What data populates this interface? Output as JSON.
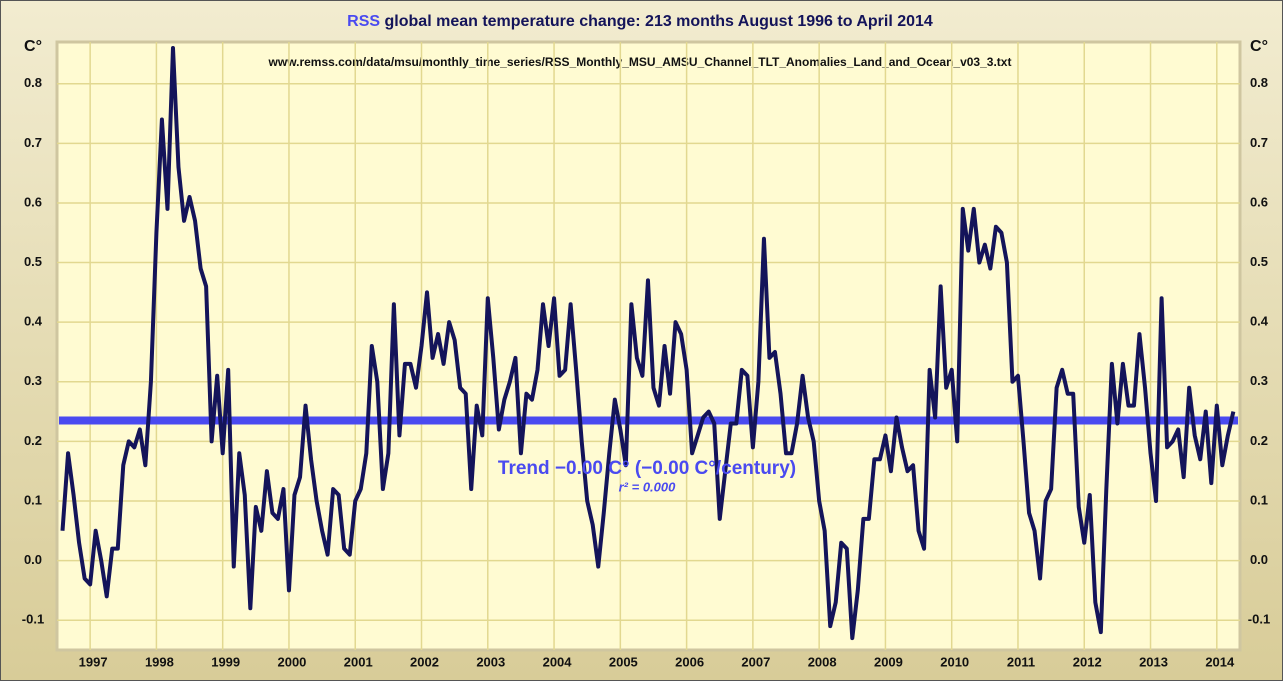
{
  "chart_data": {
    "type": "line",
    "title_prefix": "RSS",
    "title": "global mean temperature change: 213 months August 1996 to April 2014",
    "source": "www.remss.com/data/msu/monthly_time_series/RSS_Monthly_MSU_AMSU_Channel_TLT_Anomalies_Land_and_Ocean_v03_3.txt",
    "y_label": "C°",
    "trend_label": "Trend −0.00 C° (−0.00 C°/century)",
    "r2_label": "r² = 0.000",
    "trend_value": 0.235,
    "trend_color": "#4a4af0",
    "x": [
      1996.583,
      1996.667,
      1996.75,
      1996.833,
      1996.917,
      1997,
      1997.083,
      1997.167,
      1997.25,
      1997.333,
      1997.417,
      1997.5,
      1997.583,
      1997.667,
      1997.75,
      1997.833,
      1997.917,
      1998,
      1998.083,
      1998.167,
      1998.25,
      1998.333,
      1998.417,
      1998.5,
      1998.583,
      1998.667,
      1998.75,
      1998.833,
      1998.917,
      1999,
      1999.083,
      1999.167,
      1999.25,
      1999.333,
      1999.417,
      1999.5,
      1999.583,
      1999.667,
      1999.75,
      1999.833,
      1999.917,
      2000,
      2000.083,
      2000.167,
      2000.25,
      2000.333,
      2000.417,
      2000.5,
      2000.583,
      2000.667,
      2000.75,
      2000.833,
      2000.917,
      2001,
      2001.083,
      2001.167,
      2001.25,
      2001.333,
      2001.417,
      2001.5,
      2001.583,
      2001.667,
      2001.75,
      2001.833,
      2001.917,
      2002,
      2002.083,
      2002.167,
      2002.25,
      2002.333,
      2002.417,
      2002.5,
      2002.583,
      2002.667,
      2002.75,
      2002.833,
      2002.917,
      2003,
      2003.083,
      2003.167,
      2003.25,
      2003.333,
      2003.417,
      2003.5,
      2003.583,
      2003.667,
      2003.75,
      2003.833,
      2003.917,
      2004,
      2004.083,
      2004.167,
      2004.25,
      2004.333,
      2004.417,
      2004.5,
      2004.583,
      2004.667,
      2004.75,
      2004.833,
      2004.917,
      2005,
      2005.083,
      2005.167,
      2005.25,
      2005.333,
      2005.417,
      2005.5,
      2005.583,
      2005.667,
      2005.75,
      2005.833,
      2005.917,
      2006,
      2006.083,
      2006.167,
      2006.25,
      2006.333,
      2006.417,
      2006.5,
      2006.583,
      2006.667,
      2006.75,
      2006.833,
      2006.917,
      2007,
      2007.083,
      2007.167,
      2007.25,
      2007.333,
      2007.417,
      2007.5,
      2007.583,
      2007.667,
      2007.75,
      2007.833,
      2007.917,
      2008,
      2008.083,
      2008.167,
      2008.25,
      2008.333,
      2008.417,
      2008.5,
      2008.583,
      2008.667,
      2008.75,
      2008.833,
      2008.917,
      2009,
      2009.083,
      2009.167,
      2009.25,
      2009.333,
      2009.417,
      2009.5,
      2009.583,
      2009.667,
      2009.75,
      2009.833,
      2009.917,
      2010,
      2010.083,
      2010.167,
      2010.25,
      2010.333,
      2010.417,
      2010.5,
      2010.583,
      2010.667,
      2010.75,
      2010.833,
      2010.917,
      2011,
      2011.083,
      2011.167,
      2011.25,
      2011.333,
      2011.417,
      2011.5,
      2011.583,
      2011.667,
      2011.75,
      2011.833,
      2011.917,
      2012,
      2012.083,
      2012.167,
      2012.25,
      2012.333,
      2012.417,
      2012.5,
      2012.583,
      2012.667,
      2012.75,
      2012.833,
      2012.917,
      2013,
      2013.083,
      2013.167,
      2013.25,
      2013.333,
      2013.417,
      2013.5,
      2013.583,
      2013.667,
      2013.75,
      2013.833,
      2013.917,
      2014,
      2014.083,
      2014.167,
      2014.25
    ],
    "series": [
      {
        "color": "#14145a",
        "values": [
          0.05,
          0.18,
          0.11,
          0.03,
          -0.03,
          -0.04,
          0.05,
          0.0,
          -0.06,
          0.02,
          0.02,
          0.16,
          0.2,
          0.19,
          0.22,
          0.16,
          0.3,
          0.55,
          0.74,
          0.59,
          0.86,
          0.66,
          0.57,
          0.61,
          0.57,
          0.49,
          0.46,
          0.2,
          0.31,
          0.18,
          0.32,
          -0.01,
          0.18,
          0.11,
          -0.08,
          0.09,
          0.05,
          0.15,
          0.08,
          0.07,
          0.12,
          -0.05,
          0.11,
          0.14,
          0.26,
          0.17,
          0.1,
          0.05,
          0.01,
          0.12,
          0.11,
          0.02,
          0.01,
          0.1,
          0.12,
          0.18,
          0.36,
          0.3,
          0.12,
          0.18,
          0.43,
          0.21,
          0.33,
          0.33,
          0.29,
          0.36,
          0.45,
          0.34,
          0.38,
          0.33,
          0.4,
          0.37,
          0.29,
          0.28,
          0.12,
          0.26,
          0.21,
          0.44,
          0.34,
          0.22,
          0.27,
          0.3,
          0.34,
          0.18,
          0.28,
          0.27,
          0.32,
          0.43,
          0.36,
          0.44,
          0.31,
          0.32,
          0.43,
          0.32,
          0.2,
          0.1,
          0.06,
          -0.01,
          0.08,
          0.18,
          0.27,
          0.22,
          0.16,
          0.43,
          0.34,
          0.31,
          0.47,
          0.29,
          0.26,
          0.36,
          0.28,
          0.4,
          0.38,
          0.32,
          0.18,
          0.21,
          0.24,
          0.25,
          0.23,
          0.07,
          0.15,
          0.23,
          0.23,
          0.32,
          0.31,
          0.19,
          0.3,
          0.54,
          0.34,
          0.35,
          0.28,
          0.18,
          0.18,
          0.23,
          0.31,
          0.24,
          0.2,
          0.1,
          0.05,
          -0.11,
          -0.07,
          0.03,
          0.02,
          -0.13,
          -0.05,
          0.07,
          0.07,
          0.17,
          0.17,
          0.21,
          0.15,
          0.24,
          0.19,
          0.15,
          0.16,
          0.05,
          0.02,
          0.32,
          0.24,
          0.46,
          0.29,
          0.32,
          0.2,
          0.59,
          0.52,
          0.59,
          0.5,
          0.53,
          0.49,
          0.56,
          0.55,
          0.5,
          0.3,
          0.31,
          0.2,
          0.08,
          0.05,
          -0.03,
          0.1,
          0.12,
          0.29,
          0.32,
          0.28,
          0.28,
          0.09,
          0.03,
          0.11,
          -0.07,
          -0.12,
          0.12,
          0.33,
          0.23,
          0.33,
          0.26,
          0.26,
          0.38,
          0.29,
          0.18,
          0.1,
          0.44,
          0.19,
          0.2,
          0.22,
          0.14,
          0.29,
          0.21,
          0.17,
          0.25,
          0.13,
          0.26,
          0.16,
          0.21,
          0.25
        ]
      }
    ],
    "xlim": [
      1996.5,
      2014.35
    ],
    "xticks": [
      1997,
      1998,
      1999,
      2000,
      2001,
      2002,
      2003,
      2004,
      2005,
      2006,
      2007,
      2008,
      2009,
      2010,
      2011,
      2012,
      2013,
      2014
    ],
    "ylim": [
      -0.15,
      0.87
    ],
    "yticks": [
      -0.1,
      {
        "value": 0,
        "label": "0.0"
      },
      0.1,
      0.2,
      0.3,
      0.4,
      0.5,
      0.6,
      0.7,
      0.8
    ],
    "grid": true
  }
}
